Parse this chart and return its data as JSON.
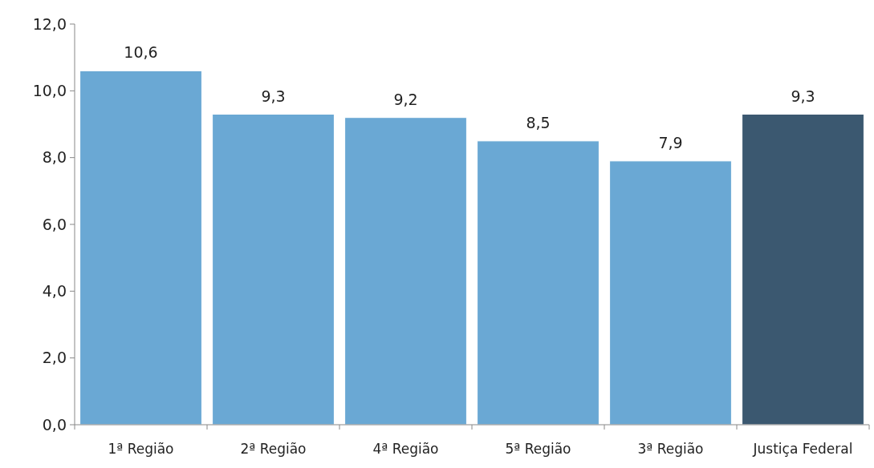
{
  "chart_data": {
    "type": "bar",
    "categories": [
      "1ª Região",
      "2ª Região",
      "4ª Região",
      "5ª Região",
      "3ª Região",
      "Justiça Federal"
    ],
    "values": [
      10.6,
      9.3,
      9.2,
      8.5,
      7.9,
      9.3
    ],
    "colors": [
      "#6aa8d4",
      "#6aa8d4",
      "#6aa8d4",
      "#6aa8d4",
      "#6aa8d4",
      "#3b5870"
    ],
    "value_labels": [
      "10,6",
      "9,3",
      "9,2",
      "8,5",
      "7,9",
      "9,3"
    ],
    "ylim": [
      0,
      12
    ],
    "yticks": [
      {
        "value": 0,
        "label": "0,0"
      },
      {
        "value": 2,
        "label": "2,0"
      },
      {
        "value": 4,
        "label": "4,0"
      },
      {
        "value": 6,
        "label": "6,0"
      },
      {
        "value": 8,
        "label": "8,0"
      },
      {
        "value": 10,
        "label": "10,0"
      },
      {
        "value": 12,
        "label": "12,0"
      }
    ],
    "grid": false
  }
}
